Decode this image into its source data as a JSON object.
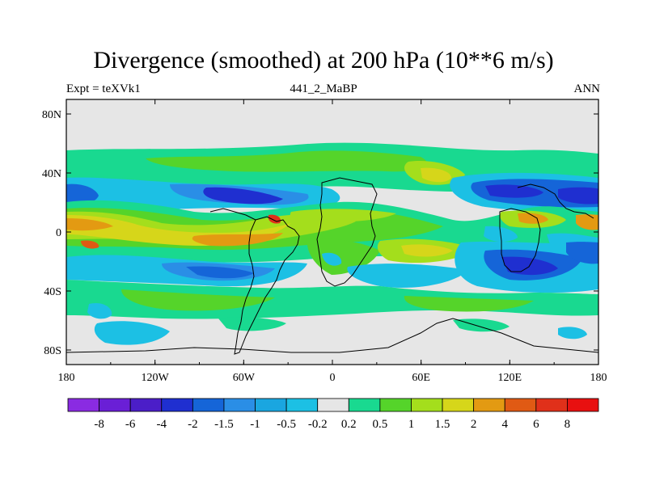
{
  "chart_data": {
    "type": "heatmap",
    "title": "Divergence (smoothed) at 200 hPa (10**6 m/s)",
    "left_string": "Expt = teXVk1",
    "center_string": "441_2_MaBP",
    "right_string": "ANN",
    "x_ticks": [
      "180",
      "120W",
      "60W",
      "0",
      "60E",
      "120E",
      "180"
    ],
    "y_ticks": [
      "80N",
      "40N",
      "0",
      "40S",
      "80S"
    ],
    "x_range": [
      -180,
      180
    ],
    "y_range": [
      -90,
      90
    ],
    "colorbar": {
      "colors": [
        "#8a2be2",
        "#6a1fd6",
        "#4b1ec8",
        "#1f2fd0",
        "#1565d8",
        "#2a8ee6",
        "#1aa6e0",
        "#1cc0e4",
        "#e6e6e6",
        "#19d990",
        "#55d42a",
        "#a4de1c",
        "#d6d61a",
        "#e39a12",
        "#e05a14",
        "#e0301a",
        "#e81010"
      ],
      "labels": [
        "-8",
        "-6",
        "-4",
        "-2",
        "-1.5",
        "-1",
        "-0.5",
        "-0.2",
        "0.2",
        "0.5",
        "1",
        "1.5",
        "2",
        "4",
        "6",
        "8"
      ]
    }
  }
}
